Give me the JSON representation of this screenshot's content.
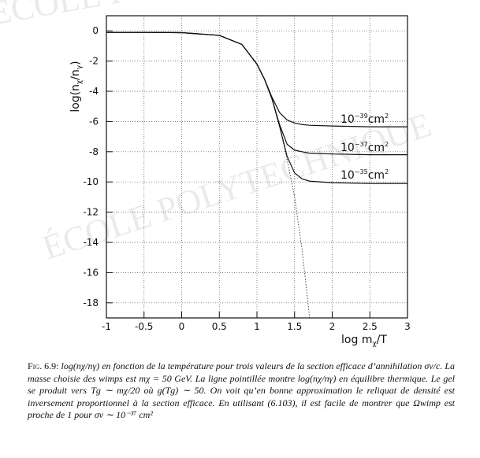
{
  "watermark": "ÉCOLE POLYTECHNIQUE",
  "chart_data": {
    "type": "line",
    "y_label_parts": [
      "log(n",
      "χ",
      "/n",
      "γ",
      ")"
    ],
    "x_label_parts": [
      "log m",
      "χ",
      "/T"
    ],
    "x": [
      -1,
      -0.5,
      0,
      0.5,
      0.8,
      1,
      1.1,
      1.2,
      1.3,
      1.4,
      1.5,
      1.6,
      1.7,
      2,
      2.5,
      3
    ],
    "series": [
      {
        "name": "equilibre",
        "style": "dotted",
        "color": "#333333",
        "values": [
          -0.1,
          -0.1,
          -0.12,
          -0.3,
          -0.9,
          -2.2,
          -3.2,
          -4.5,
          -6.3,
          -8.5,
          -11,
          -14.5,
          -19,
          null,
          null,
          null
        ]
      },
      {
        "label_parts": [
          "10",
          "−39",
          "cm",
          "2"
        ],
        "style": "solid",
        "color": "#111111",
        "values": [
          -0.1,
          -0.1,
          -0.12,
          -0.3,
          -0.9,
          -2.2,
          -3.2,
          -4.4,
          -5.4,
          -5.9,
          -6.1,
          -6.2,
          -6.25,
          -6.3,
          -6.35,
          -6.35
        ]
      },
      {
        "label_parts": [
          "10",
          "−37",
          "cm",
          "2"
        ],
        "style": "solid",
        "color": "#111111",
        "values": [
          -0.1,
          -0.1,
          -0.12,
          -0.3,
          -0.9,
          -2.2,
          -3.2,
          -4.5,
          -6.2,
          -7.5,
          -7.9,
          -8.0,
          -8.1,
          -8.15,
          -8.2,
          -8.2
        ]
      },
      {
        "label_parts": [
          "10",
          "−35",
          "cm",
          "2"
        ],
        "style": "solid",
        "color": "#111111",
        "values": [
          -0.1,
          -0.1,
          -0.12,
          -0.3,
          -0.9,
          -2.2,
          -3.2,
          -4.5,
          -6.3,
          -8.3,
          -9.4,
          -9.8,
          -9.95,
          -10.05,
          -10.1,
          -10.1
        ]
      }
    ],
    "xlim": [
      -1,
      3
    ],
    "xticks": [
      -1,
      -0.5,
      0,
      0.5,
      1,
      1.5,
      2,
      2.5,
      3
    ],
    "ylim": [
      -19,
      1
    ],
    "yticks": [
      0,
      -2,
      -4,
      -6,
      -8,
      -10,
      -12,
      -14,
      -16,
      -18
    ],
    "grid": true
  },
  "caption": {
    "label": "Fig. 6.9:",
    "text": "log(nχ/nγ) en fonction de la température pour trois valeurs de la section efficace d’annihilation σv/c. La masse choisie des wimps est mχ = 50 GeV. La ligne pointillée montre log(nχ/nγ) en équilibre thermique. Le gel se produit vers Tg ∼ mχ/20 où g(Tg) ∼ 50. On voit qu’en bonne approximation le reliquat de densité est inversement proportionnel à la section efficace. En utilisant (6.103), il est facile de montrer que Ωwimp est proche de 1 pour σv ∼ 10⁻³⁷ cm²"
  }
}
